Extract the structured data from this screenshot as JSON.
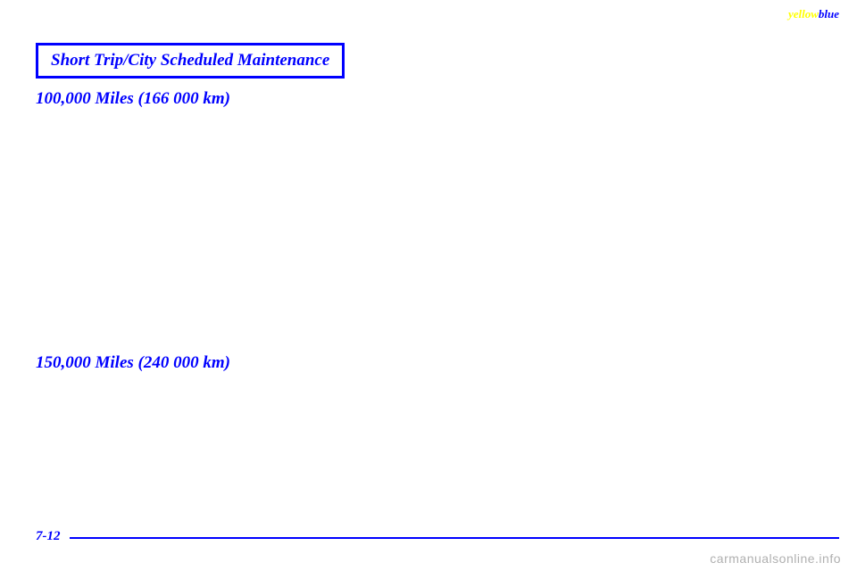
{
  "corner": {
    "yellow_text": "yellow",
    "blue_text": "blue"
  },
  "header": {
    "title": "Short Trip/City Scheduled Maintenance"
  },
  "sections": {
    "heading_1": "100,000 Miles (166 000 km)",
    "heading_2": "150,000 Miles (240 000 km)"
  },
  "page": {
    "number": "7-12"
  },
  "watermark": {
    "text": "carmanualsonline.info"
  },
  "colors": {
    "primary": "#0000ff",
    "accent": "#ffff00",
    "background": "#ffffff",
    "watermark": "#b0b0b0"
  }
}
